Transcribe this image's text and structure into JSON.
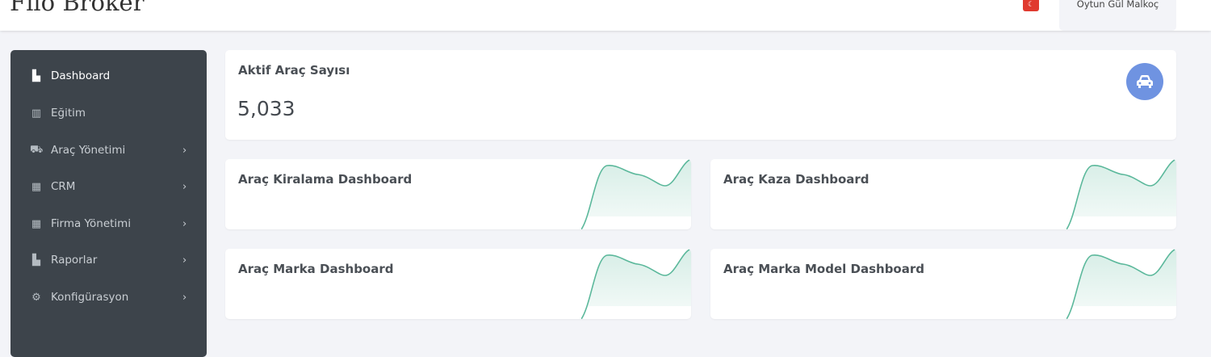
{
  "header": {
    "brand": "Filo Broker",
    "language_flag": "turkey-flag",
    "user_name": "Oytun Gül Malkoç"
  },
  "sidebar": {
    "items": [
      {
        "label": "Dashboard",
        "icon": "chart-file-icon",
        "active": true,
        "has_submenu": false
      },
      {
        "label": "Eğitim",
        "icon": "book-icon",
        "active": false,
        "has_submenu": false
      },
      {
        "label": "Araç Yönetimi",
        "icon": "car-icon",
        "active": false,
        "has_submenu": true
      },
      {
        "label": "CRM",
        "icon": "building-icon",
        "active": false,
        "has_submenu": true
      },
      {
        "label": "Firma Yönetimi",
        "icon": "building-icon",
        "active": false,
        "has_submenu": true
      },
      {
        "label": "Raporlar",
        "icon": "chart-file-icon",
        "active": false,
        "has_submenu": true
      },
      {
        "label": "Konfigürasyon",
        "icon": "gears-icon",
        "active": false,
        "has_submenu": true
      }
    ]
  },
  "stats": {
    "title": "Aktif Araç Sayısı",
    "value": "5,033",
    "icon": "car-icon",
    "icon_color": "#6f93e1"
  },
  "dashboards": [
    {
      "title": "Araç Kiralama Dashboard"
    },
    {
      "title": "Araç Kaza Dashboard"
    },
    {
      "title": "Araç Marka Dashboard"
    },
    {
      "title": "Araç Marka Model Dashboard"
    }
  ],
  "colors": {
    "sidebar": "#3d444b",
    "sparkline": "#5bb89b",
    "background": "#f3f4f8"
  }
}
